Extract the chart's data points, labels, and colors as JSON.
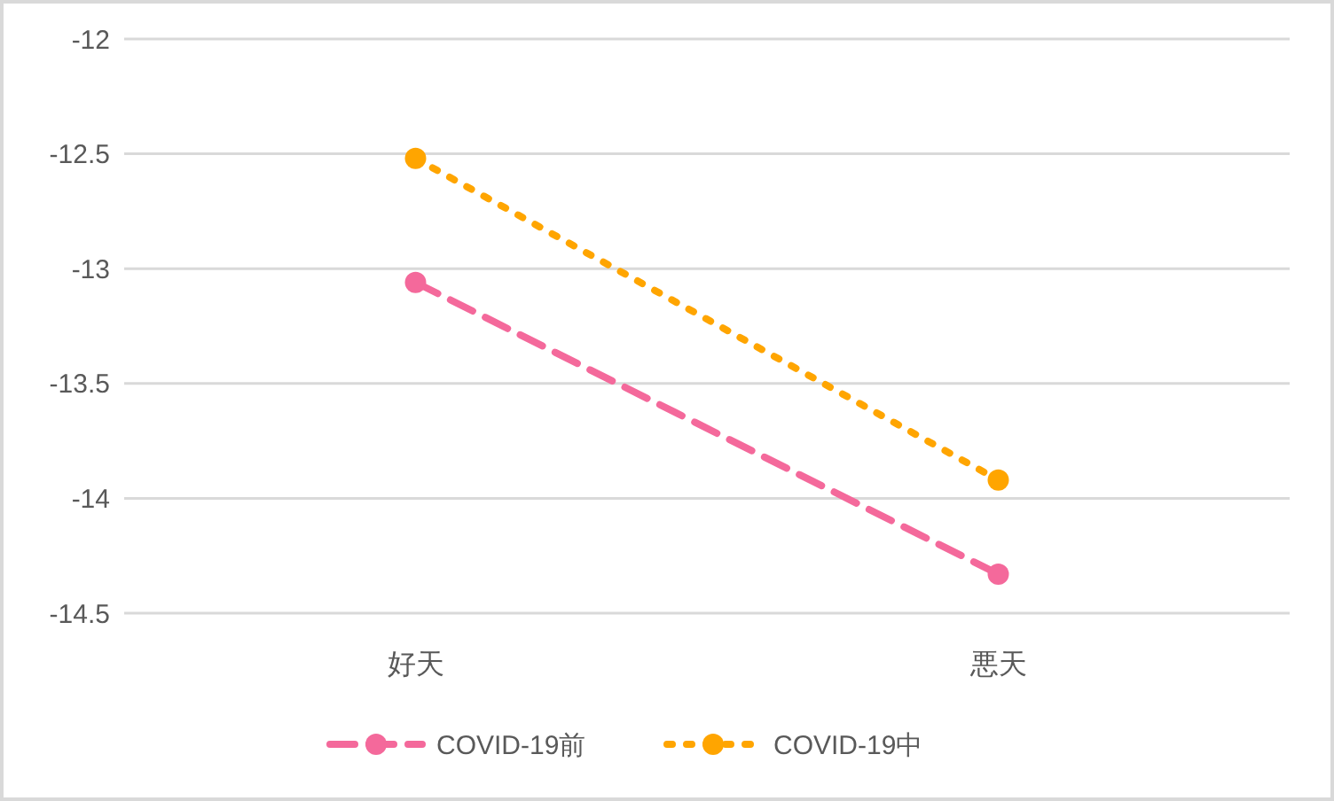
{
  "chart_data": {
    "type": "line",
    "categories": [
      "好天",
      "悪天"
    ],
    "series": [
      {
        "name": "COVID-19前",
        "color": "#f4699b",
        "values": [
          -13.06,
          -14.33
        ],
        "line_style": "dashed",
        "marker": "circle"
      },
      {
        "name": "COVID-19中",
        "color": "#ffa500",
        "values": [
          -12.52,
          -13.92
        ],
        "line_style": "dotted",
        "marker": "circle"
      }
    ],
    "ylim": [
      -14.5,
      -12
    ],
    "yticks": [
      -14.5,
      -14,
      -13.5,
      -13,
      -12.5,
      -12
    ],
    "grid": "y",
    "legend": "bottom"
  }
}
